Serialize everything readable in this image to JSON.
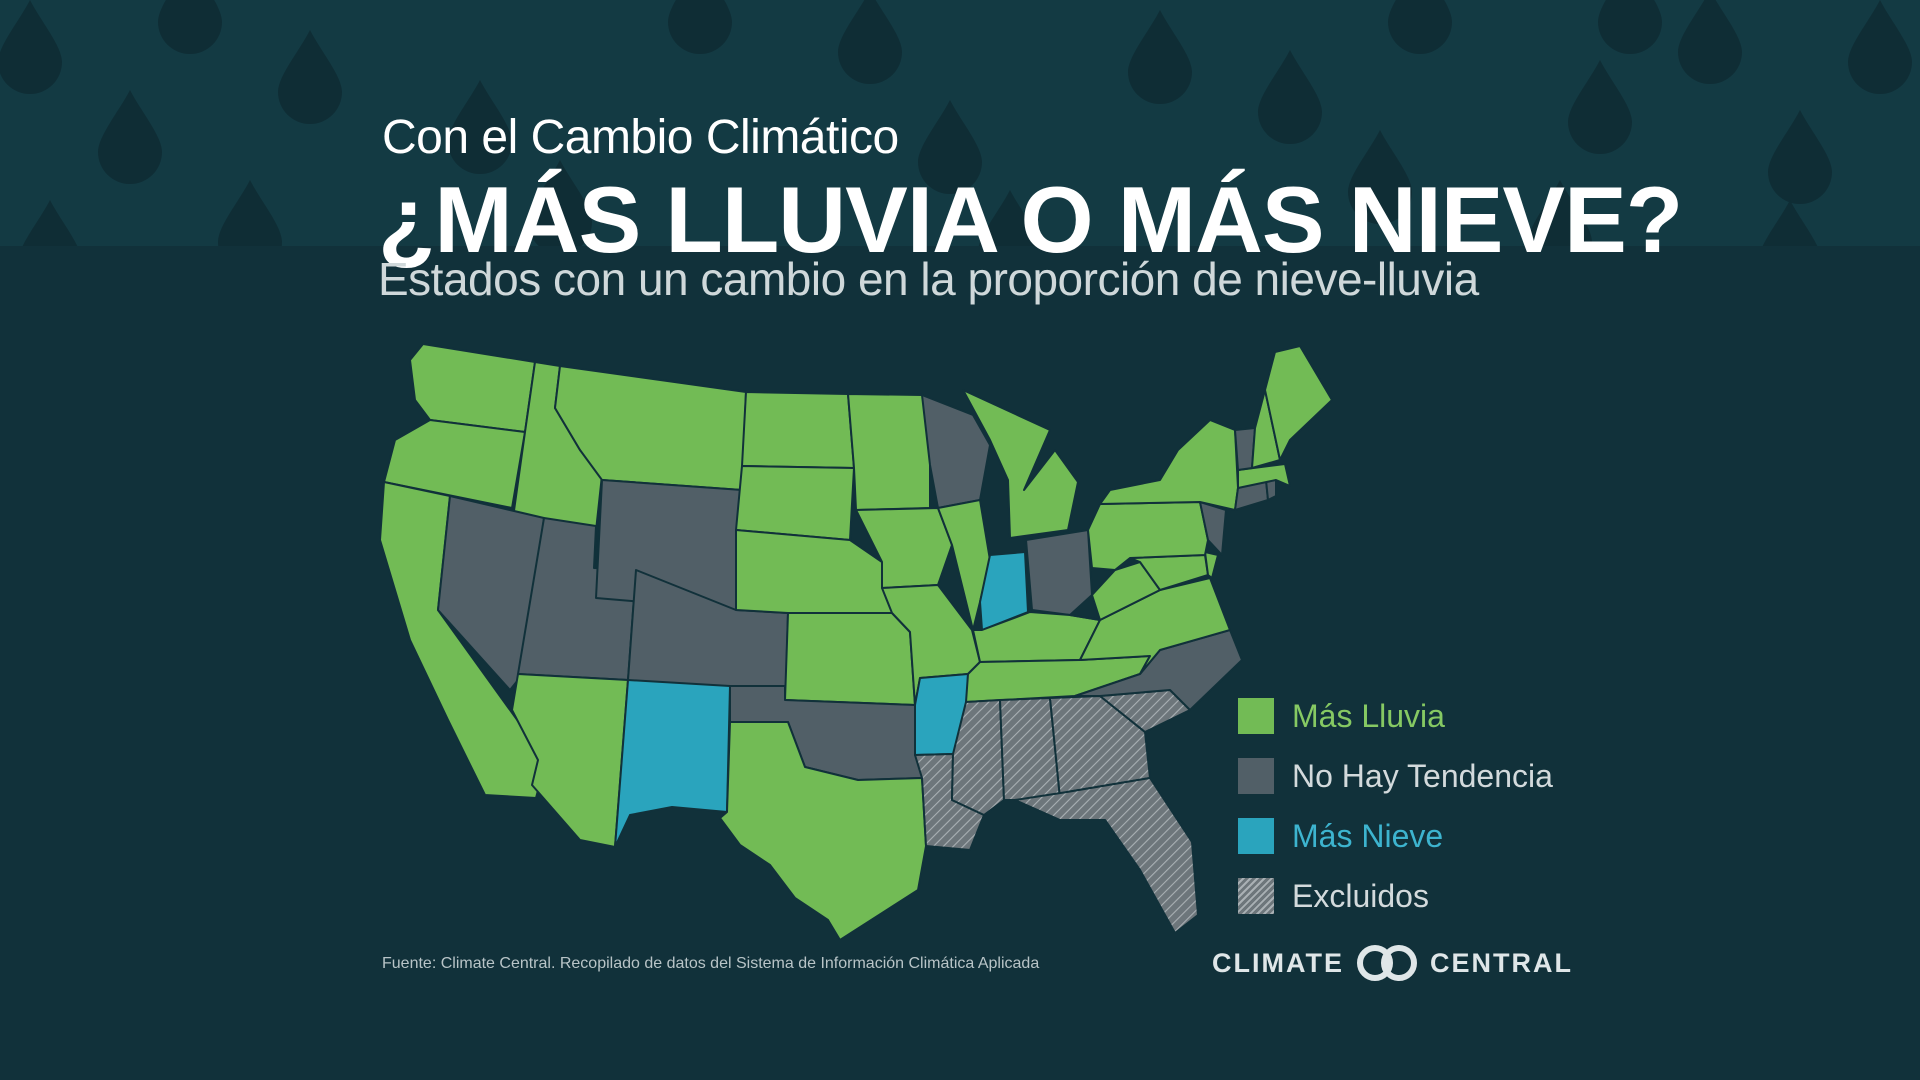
{
  "header": {
    "kicker": "Con el Cambio Climático",
    "title": "¿MÁS LLUVIA O MÁS NIEVE?",
    "subtitle": "Estados con un cambio en la proporción de nieve-lluvia"
  },
  "map": {
    "region": "Estados Unidos contiguos",
    "states": {
      "WA": "rain",
      "OR": "rain",
      "CA": "rain",
      "ID": "rain",
      "MT": "rain",
      "NV": "none",
      "UT": "none",
      "WY": "none",
      "CO": "none",
      "AZ": "rain",
      "NM": "snow",
      "ND": "rain",
      "SD": "rain",
      "NE": "rain",
      "KS": "rain",
      "OK": "none",
      "TX": "rain",
      "MN": "rain",
      "IA": "rain",
      "MO": "rain",
      "AR": "snow",
      "LA": "excluded",
      "WI": "none",
      "IL": "rain",
      "IN": "snow",
      "MI": "rain",
      "OH": "none",
      "KY": "rain",
      "TN": "rain",
      "MS": "excluded",
      "AL": "excluded",
      "GA": "excluded",
      "FL": "excluded",
      "SC": "excluded",
      "NC": "none",
      "VA": "rain",
      "WV": "rain",
      "MD": "rain",
      "DE": "rain",
      "PA": "rain",
      "NJ": "none",
      "NY": "rain",
      "CT": "none",
      "RI": "none",
      "MA": "rain",
      "VT": "none",
      "NH": "rain",
      "ME": "rain"
    }
  },
  "legend": {
    "items": [
      {
        "key": "rain",
        "label": "Más Lluvia",
        "color": "#72bb55",
        "text_color": "#86c963"
      },
      {
        "key": "none",
        "label": "No Hay Tendencia",
        "color": "#515f67",
        "text_color": "#d3dadc"
      },
      {
        "key": "snow",
        "label": "Más Nieve",
        "color": "#2aa4bd",
        "text_color": "#3db4cf"
      },
      {
        "key": "excluded",
        "label": "Excluidos",
        "color": "#70787d",
        "text_color": "#d3dadc"
      }
    ]
  },
  "footer": {
    "source": "Fuente: Climate Central. Recopilado de datos del Sistema de Información Climática Aplicada",
    "logo_left": "CLIMATE",
    "logo_right": "CENTRAL"
  }
}
